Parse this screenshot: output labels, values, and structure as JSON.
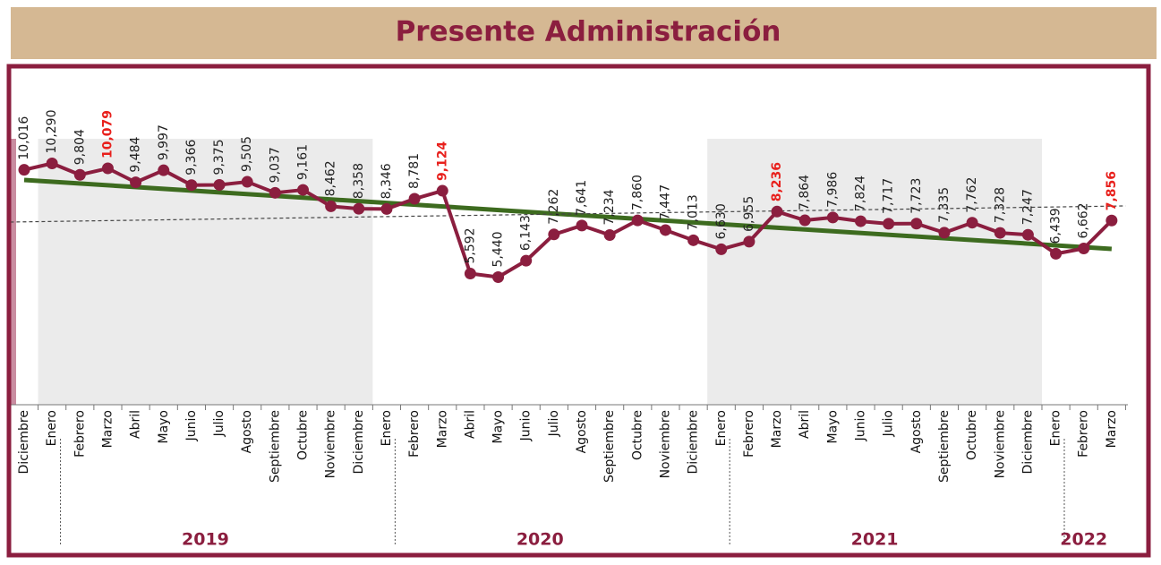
{
  "chart_data": {
    "type": "line",
    "title": "Presente Administración",
    "categories": [
      "Diciembre",
      "Enero",
      "Febrero",
      "Marzo",
      "Abril",
      "Mayo",
      "Junio",
      "Julio",
      "Agosto",
      "Septiembre",
      "Octubre",
      "Noviembre",
      "Diciembre",
      "Enero",
      "Febrero",
      "Marzo",
      "Abril",
      "Mayo",
      "Junio",
      "Julio",
      "Agosto",
      "Septiembre",
      "Octubre",
      "Noviembre",
      "Diciembre",
      "Enero",
      "Febrero",
      "Marzo",
      "Abril",
      "Mayo",
      "Junio",
      "Julio",
      "Agosto",
      "Septiembre",
      "Octubre",
      "Noviembre",
      "Diciembre",
      "Enero",
      "Febrero",
      "Marzo"
    ],
    "series": [
      {
        "color": "#8b1e3f",
        "values": [
          10016,
          10290,
          9804,
          10079,
          9484,
          9997,
          9366,
          9375,
          9505,
          9037,
          9161,
          8462,
          8358,
          8346,
          8781,
          9124,
          5592,
          5440,
          6143,
          7262,
          7641,
          7234,
          7860,
          7447,
          7013,
          6630,
          6955,
          8236,
          7864,
          7986,
          7824,
          7717,
          7723,
          7335,
          7762,
          7328,
          7247,
          6439,
          6662,
          7856
        ],
        "value_labels": [
          "10,016",
          "10,290",
          "9,804",
          "10,079",
          "9,484",
          "9,997",
          "9,366",
          "9,375",
          "9,505",
          "9,037",
          "9,161",
          "8,462",
          "8,358",
          "8,346",
          "8,781",
          "9,124",
          "5,592",
          "5,440",
          "6,143",
          "7,262",
          "7,641",
          "7,234",
          "7,860",
          "7,447",
          "7,013",
          "6,630",
          "6,955",
          "8,236",
          "7,864",
          "7,986",
          "7,824",
          "7,717",
          "7,723",
          "7,335",
          "7,762",
          "7,328",
          "7,247",
          "6,439",
          "6,662",
          "7,856"
        ]
      }
    ],
    "highlight": [
      3,
      15,
      27,
      39
    ],
    "highlight_color": "#e8201c",
    "trend_lines": [
      {
        "color": "#3d6b1f",
        "x": [
          0,
          39
        ],
        "values": [
          9584,
          6644
        ],
        "dashed": false
      },
      {
        "color": "#444444",
        "x": [
          -0.5,
          39.5
        ],
        "values": [
          7790,
          8477
        ],
        "dashed": true
      }
    ],
    "years": [
      {
        "label": "2019",
        "start": 1,
        "end": 12,
        "shaded": true
      },
      {
        "label": "2020",
        "start": 13,
        "end": 24,
        "shaded": false
      },
      {
        "label": "2021",
        "start": 25,
        "end": 36,
        "shaded": true
      },
      {
        "label": "2022",
        "start": 37,
        "end": 39,
        "shaded": false
      }
    ],
    "ylim": [
      0,
      11340
    ]
  }
}
